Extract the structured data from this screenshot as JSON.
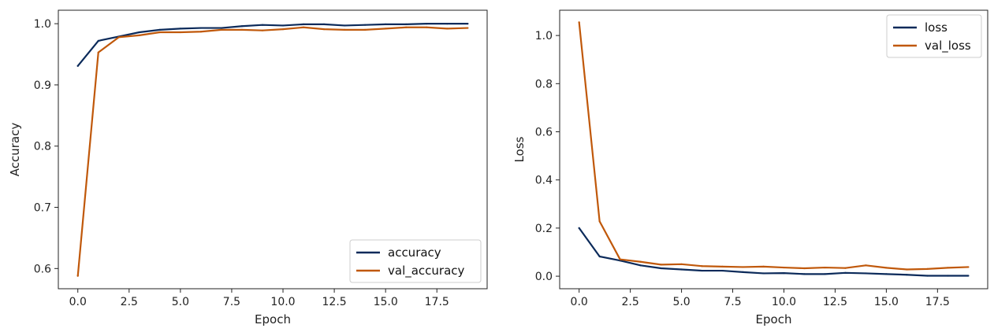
{
  "chart_data": [
    {
      "type": "line",
      "title": "",
      "xlabel": "Epoch",
      "ylabel": "Accuracy",
      "xlim": [
        -0.95,
        19.95
      ],
      "ylim": [
        0.567,
        1.022
      ],
      "xticks": [
        0.0,
        2.5,
        5.0,
        7.5,
        10.0,
        12.5,
        15.0,
        17.5
      ],
      "xtick_labels": [
        "0.0",
        "2.5",
        "5.0",
        "7.5",
        "10.0",
        "12.5",
        "15.0",
        "17.5"
      ],
      "yticks": [
        0.6,
        0.7,
        0.8,
        0.9,
        1.0
      ],
      "ytick_labels": [
        "0.6",
        "0.7",
        "0.8",
        "0.9",
        "1.0"
      ],
      "grid": false,
      "legend_position": "lower-right",
      "x": [
        0,
        1,
        2,
        3,
        4,
        5,
        6,
        7,
        8,
        9,
        10,
        11,
        12,
        13,
        14,
        15,
        16,
        17,
        18,
        19
      ],
      "series": [
        {
          "name": "accuracy",
          "color": "#0b2a5a",
          "values": [
            0.931,
            0.972,
            0.979,
            0.986,
            0.99,
            0.992,
            0.993,
            0.993,
            0.996,
            0.998,
            0.997,
            0.999,
            0.999,
            0.997,
            0.998,
            0.999,
            0.999,
            1.0,
            1.0,
            1.0
          ]
        },
        {
          "name": "val_accuracy",
          "color": "#c0580a",
          "values": [
            0.588,
            0.953,
            0.978,
            0.981,
            0.986,
            0.986,
            0.987,
            0.99,
            0.99,
            0.989,
            0.991,
            0.994,
            0.991,
            0.99,
            0.99,
            0.992,
            0.994,
            0.994,
            0.992,
            0.993
          ]
        }
      ]
    },
    {
      "type": "line",
      "title": "",
      "xlabel": "Epoch",
      "ylabel": "Loss",
      "xlim": [
        -0.95,
        19.95
      ],
      "ylim": [
        -0.052,
        1.105
      ],
      "xticks": [
        0.0,
        2.5,
        5.0,
        7.5,
        10.0,
        12.5,
        15.0,
        17.5
      ],
      "xtick_labels": [
        "0.0",
        "2.5",
        "5.0",
        "7.5",
        "10.0",
        "12.5",
        "15.0",
        "17.5"
      ],
      "yticks": [
        0.0,
        0.2,
        0.4,
        0.6,
        0.8,
        1.0
      ],
      "ytick_labels": [
        "0.0",
        "0.2",
        "0.4",
        "0.6",
        "0.8",
        "1.0"
      ],
      "grid": false,
      "legend_position": "upper-right",
      "x": [
        0,
        1,
        2,
        3,
        4,
        5,
        6,
        7,
        8,
        9,
        10,
        11,
        12,
        13,
        14,
        15,
        16,
        17,
        18,
        19
      ],
      "series": [
        {
          "name": "loss",
          "color": "#0b2a5a",
          "values": [
            0.2,
            0.082,
            0.065,
            0.045,
            0.033,
            0.028,
            0.023,
            0.023,
            0.017,
            0.012,
            0.013,
            0.009,
            0.009,
            0.014,
            0.012,
            0.009,
            0.006,
            0.002,
            0.002,
            0.002
          ]
        },
        {
          "name": "val_loss",
          "color": "#c0580a",
          "values": [
            1.055,
            0.228,
            0.07,
            0.06,
            0.048,
            0.05,
            0.042,
            0.04,
            0.038,
            0.04,
            0.036,
            0.033,
            0.036,
            0.034,
            0.045,
            0.035,
            0.028,
            0.03,
            0.035,
            0.038
          ]
        }
      ]
    }
  ]
}
